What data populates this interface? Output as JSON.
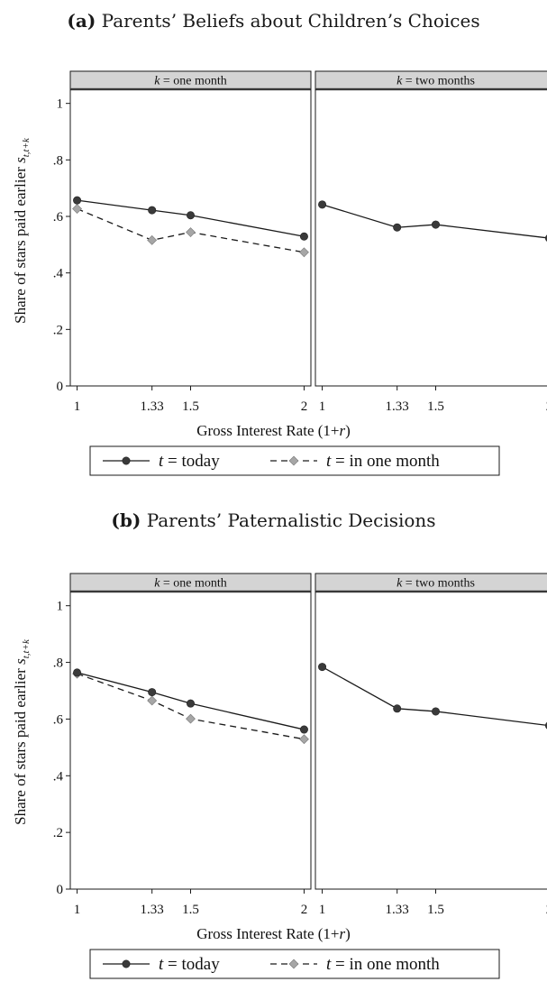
{
  "colors": {
    "series_today": "#3a3a3a",
    "series_inmonth": "#a6a6a6",
    "strip_bg": "#d4d4d4",
    "frame": "#1a1a1a"
  },
  "chart_data": [
    {
      "type": "line",
      "title_label": "(a)",
      "title_text": "Parents’ Beliefs about Children’s Choices",
      "xlabel": "Gross Interest Rate (1+r)",
      "ylabel": "Share of stars paid earlier s_{t,t+k}",
      "ylim": [
        0,
        1.05
      ],
      "xlim": [
        0.97,
        2.03
      ],
      "xticks": [
        1,
        1.33,
        1.5,
        2
      ],
      "xtick_labels": [
        "1",
        "1.33",
        "1.5",
        "2"
      ],
      "yticks": [
        0,
        0.2,
        0.4,
        0.6,
        0.8,
        1
      ],
      "ytick_labels": [
        "0",
        ".2",
        ".4",
        ".6",
        ".8",
        "1"
      ],
      "grid": false,
      "legend_position": "bottom",
      "legend": [
        "t = today",
        "t = in one month"
      ],
      "panels": [
        {
          "strip": "k = one month",
          "series": [
            {
              "name": "t = today",
              "x": [
                1,
                1.33,
                1.5,
                2
              ],
              "values": [
                0.657,
                0.622,
                0.604,
                0.529
              ]
            },
            {
              "name": "t = in one month",
              "x": [
                1,
                1.33,
                1.5,
                2
              ],
              "values": [
                0.627,
                0.516,
                0.544,
                0.473
              ]
            }
          ]
        },
        {
          "strip": "k = two months",
          "series": [
            {
              "name": "t = today",
              "x": [
                1,
                1.33,
                1.5,
                2
              ],
              "values": [
                0.642,
                0.561,
                0.571,
                0.523
              ]
            }
          ]
        }
      ]
    },
    {
      "type": "line",
      "title_label": "(b)",
      "title_text": "Parents’ Paternalistic Decisions",
      "xlabel": "Gross Interest Rate (1+r)",
      "ylabel": "Share of stars paid earlier s_{t,t+k}",
      "ylim": [
        0,
        1.05
      ],
      "xlim": [
        0.97,
        2.03
      ],
      "xticks": [
        1,
        1.33,
        1.5,
        2
      ],
      "xtick_labels": [
        "1",
        "1.33",
        "1.5",
        "2"
      ],
      "yticks": [
        0,
        0.2,
        0.4,
        0.6,
        0.8,
        1
      ],
      "ytick_labels": [
        "0",
        ".2",
        ".4",
        ".6",
        ".8",
        "1"
      ],
      "grid": false,
      "legend_position": "bottom",
      "legend": [
        "t = today",
        "t = in one month"
      ],
      "panels": [
        {
          "strip": "k = one month",
          "series": [
            {
              "name": "t = today",
              "x": [
                1,
                1.33,
                1.5,
                2
              ],
              "values": [
                0.764,
                0.695,
                0.655,
                0.563
              ]
            },
            {
              "name": "t = in one month",
              "x": [
                1,
                1.33,
                1.5,
                2
              ],
              "values": [
                0.76,
                0.665,
                0.601,
                0.529
              ]
            }
          ]
        },
        {
          "strip": "k = two months",
          "series": [
            {
              "name": "t = today",
              "x": [
                1,
                1.33,
                1.5,
                2
              ],
              "values": [
                0.784,
                0.637,
                0.627,
                0.577
              ]
            }
          ]
        }
      ]
    }
  ]
}
